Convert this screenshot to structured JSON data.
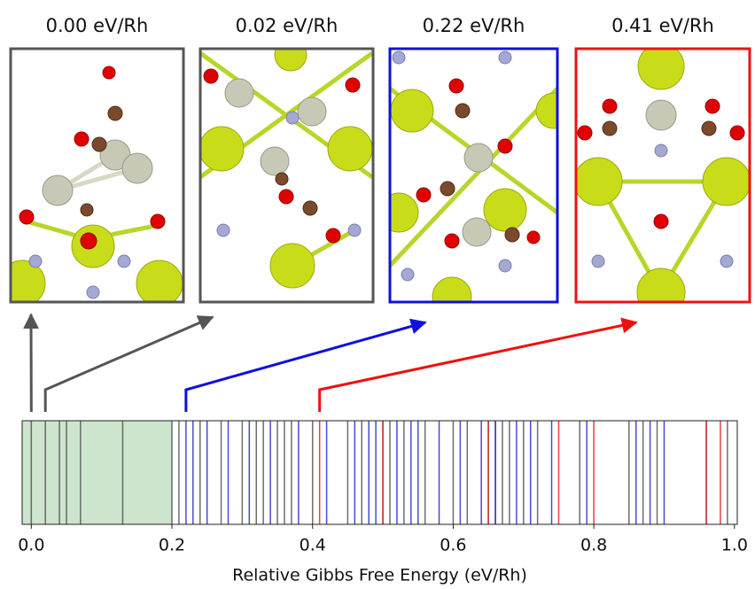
{
  "chart_data": {
    "type": "strip",
    "xlabel": "Relative Gibbs Free Energy (eV/Rh)",
    "xlim": [
      -0.013,
      1.004
    ],
    "xticks": [
      {
        "value": 0,
        "label": "0.0"
      },
      0.2,
      0.4,
      0.6,
      0.8,
      {
        "value": 1,
        "label": "1.0"
      }
    ],
    "shade": {
      "to": 0.2,
      "color": "#cde4cd"
    },
    "series": [
      {
        "color": "#555555",
        "values": [
          0.0,
          0.02,
          0.04,
          0.05,
          0.07,
          0.13,
          0.2,
          0.21,
          0.24,
          0.27,
          0.3,
          0.32,
          0.33,
          0.35,
          0.36,
          0.37,
          0.4,
          0.45,
          0.47,
          0.5,
          0.51,
          0.53,
          0.56,
          0.6,
          0.62,
          0.65,
          0.66,
          0.67,
          0.68,
          0.7,
          0.72,
          0.78,
          0.85,
          0.87,
          0.89,
          0.96,
          0.99
        ]
      },
      {
        "color": "#2a2acc",
        "values": [
          0.22,
          0.23,
          0.25,
          0.28,
          0.31,
          0.34,
          0.38,
          0.42,
          0.46,
          0.48,
          0.49,
          0.52,
          0.54,
          0.55,
          0.58,
          0.61,
          0.64,
          0.66,
          0.69,
          0.71,
          0.74,
          0.79,
          0.86,
          0.88,
          0.9
        ]
      },
      {
        "color": "#dd2222",
        "values": [
          0.41,
          0.5,
          0.65,
          0.75,
          0.8,
          0.96,
          0.98
        ]
      }
    ],
    "panels": [
      {
        "label": "0.00 eV/Rh",
        "energy": 0.0,
        "color": "#555555"
      },
      {
        "label": "0.02 eV/Rh",
        "energy": 0.02,
        "color": "#555555"
      },
      {
        "label": "0.22 eV/Rh",
        "energy": 0.22,
        "color": "#1010dd"
      },
      {
        "label": "0.41 eV/Rh",
        "energy": 0.41,
        "color": "#ee1111"
      }
    ]
  }
}
